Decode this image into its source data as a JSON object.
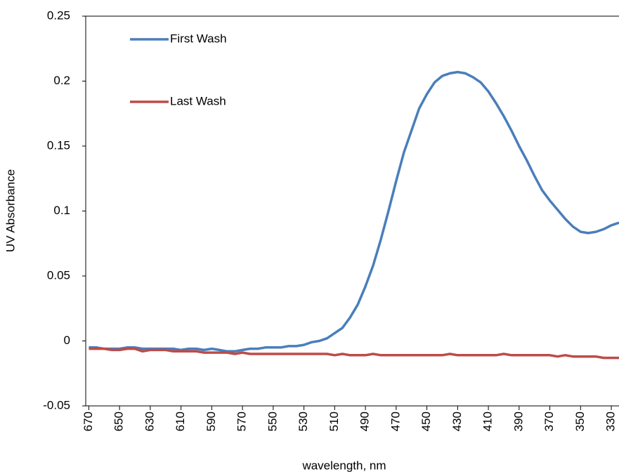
{
  "chart_data": {
    "type": "line",
    "y_label": "UV Absorbance",
    "x_label": "wavelength, nm",
    "x": [
      670,
      665,
      660,
      655,
      650,
      645,
      640,
      635,
      630,
      625,
      620,
      615,
      610,
      605,
      600,
      595,
      590,
      585,
      580,
      575,
      570,
      565,
      560,
      555,
      550,
      545,
      540,
      535,
      530,
      525,
      520,
      515,
      510,
      505,
      500,
      495,
      490,
      485,
      480,
      475,
      470,
      465,
      460,
      455,
      450,
      445,
      440,
      435,
      430,
      425,
      420,
      415,
      410,
      405,
      400,
      395,
      390,
      385,
      380,
      375,
      370,
      365,
      360,
      355,
      350,
      345,
      340,
      335,
      330,
      325
    ],
    "series": [
      {
        "name": "First Wash",
        "color": "#4a7ebb",
        "values": [
          -0.005,
          -0.005,
          -0.006,
          -0.006,
          -0.006,
          -0.005,
          -0.005,
          -0.006,
          -0.006,
          -0.006,
          -0.006,
          -0.006,
          -0.007,
          -0.006,
          -0.006,
          -0.007,
          -0.006,
          -0.007,
          -0.008,
          -0.008,
          -0.007,
          -0.006,
          -0.006,
          -0.005,
          -0.005,
          -0.005,
          -0.004,
          -0.004,
          -0.003,
          -0.001,
          0.0,
          0.002,
          0.006,
          0.01,
          0.018,
          0.028,
          0.042,
          0.058,
          0.078,
          0.1,
          0.123,
          0.145,
          0.162,
          0.179,
          0.19,
          0.199,
          0.204,
          0.206,
          0.207,
          0.206,
          0.203,
          0.199,
          0.192,
          0.183,
          0.173,
          0.162,
          0.15,
          0.139,
          0.127,
          0.116,
          0.108,
          0.101,
          0.094,
          0.088,
          0.084,
          0.083,
          0.084,
          0.086,
          0.089,
          0.091
        ]
      },
      {
        "name": "Last Wash",
        "color": "#be4b48",
        "values": [
          -0.006,
          -0.006,
          -0.006,
          -0.007,
          -0.007,
          -0.006,
          -0.006,
          -0.008,
          -0.007,
          -0.007,
          -0.007,
          -0.008,
          -0.008,
          -0.008,
          -0.008,
          -0.009,
          -0.009,
          -0.009,
          -0.009,
          -0.01,
          -0.009,
          -0.01,
          -0.01,
          -0.01,
          -0.01,
          -0.01,
          -0.01,
          -0.01,
          -0.01,
          -0.01,
          -0.01,
          -0.01,
          -0.011,
          -0.01,
          -0.011,
          -0.011,
          -0.011,
          -0.01,
          -0.011,
          -0.011,
          -0.011,
          -0.011,
          -0.011,
          -0.011,
          -0.011,
          -0.011,
          -0.011,
          -0.01,
          -0.011,
          -0.011,
          -0.011,
          -0.011,
          -0.011,
          -0.011,
          -0.01,
          -0.011,
          -0.011,
          -0.011,
          -0.011,
          -0.011,
          -0.011,
          -0.012,
          -0.011,
          -0.012,
          -0.012,
          -0.012,
          -0.012,
          -0.013,
          -0.013,
          -0.013
        ]
      }
    ],
    "xlim": [
      672,
      325
    ],
    "xticks": [
      670,
      650,
      630,
      610,
      590,
      570,
      550,
      530,
      510,
      490,
      470,
      450,
      430,
      410,
      390,
      370,
      350,
      330
    ],
    "ylim": [
      -0.05,
      0.25
    ],
    "yticks": [
      -0.05,
      0,
      0.05,
      0.1,
      0.15,
      0.2,
      0.25
    ],
    "legend": "upper left",
    "grid": false
  }
}
